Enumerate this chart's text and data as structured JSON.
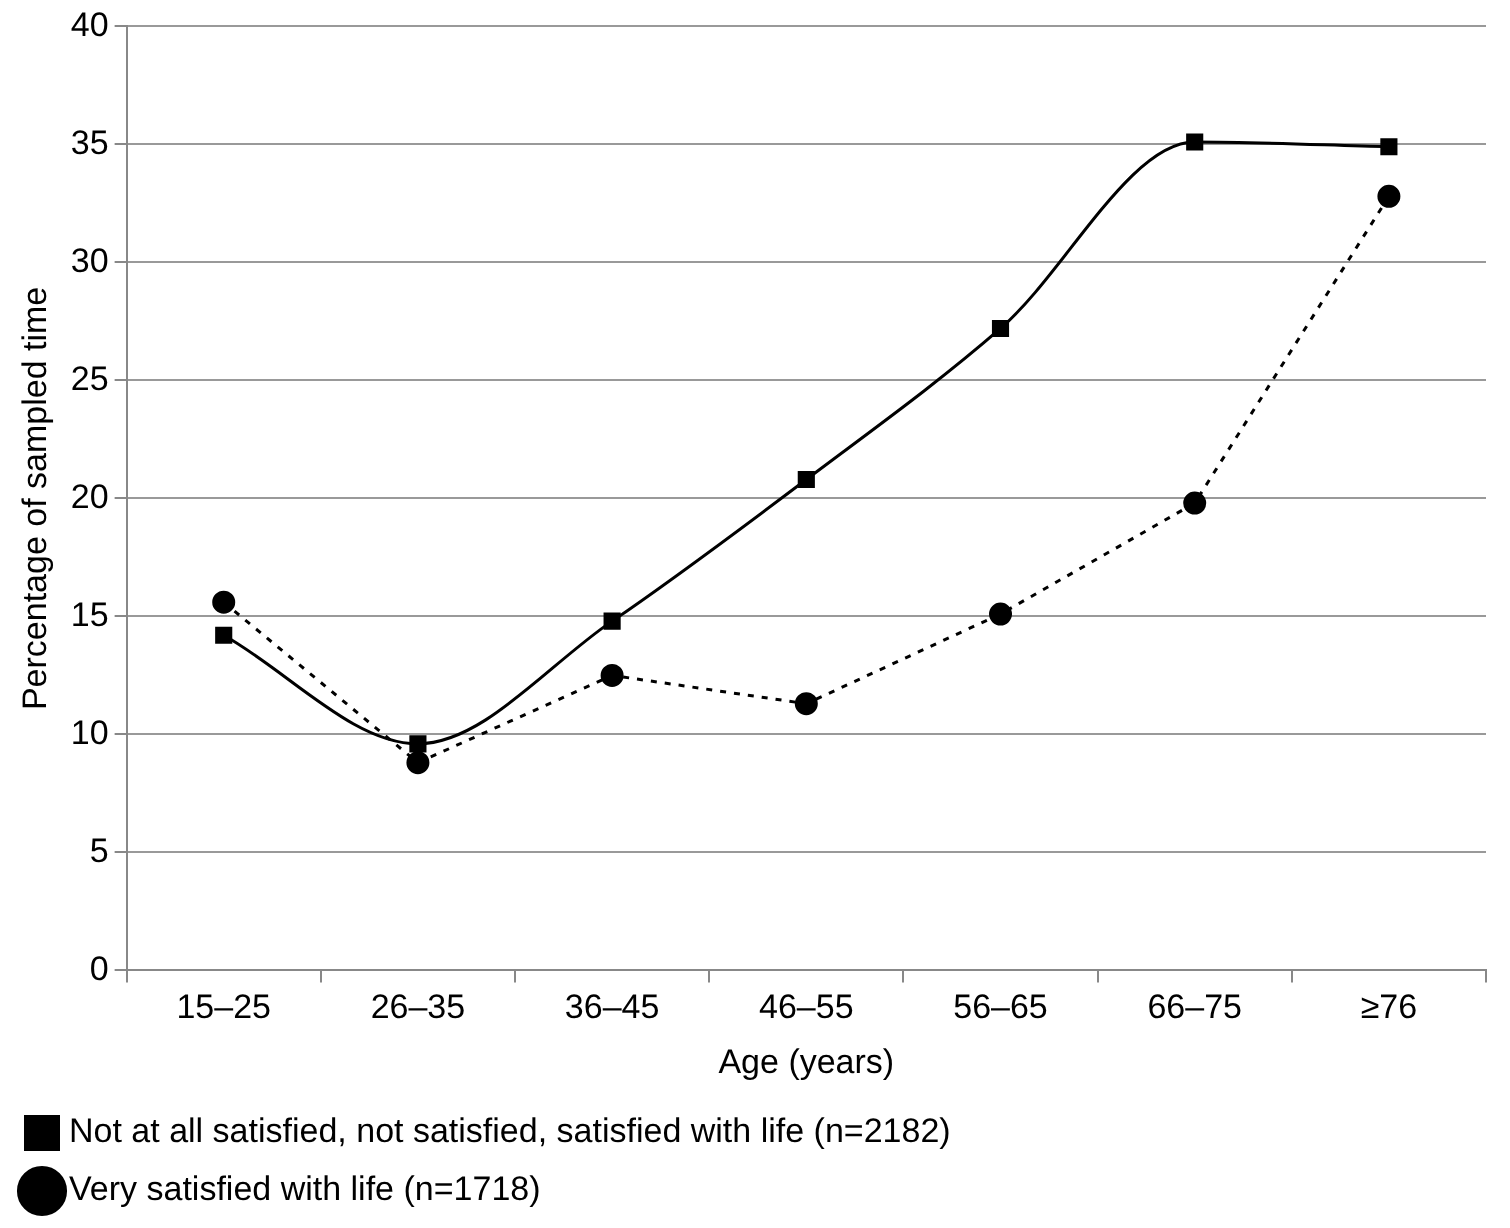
{
  "chart_data": {
    "type": "line",
    "xlabel": "Age (years)",
    "ylabel": "Percentage of sampled time",
    "categories": [
      "15–25",
      "26–35",
      "36–45",
      "46–55",
      "56–65",
      "66–75",
      "≥76"
    ],
    "series": [
      {
        "name": "Not at all satisfied, not satisfied, satisfied with life (n=2182)",
        "color": "#000000",
        "marker": "square",
        "line_style": "solid",
        "values": [
          14.2,
          9.6,
          14.8,
          20.8,
          27.2,
          35.1,
          34.9
        ]
      },
      {
        "name": "Very satisfied with life (n=1718)",
        "color": "#000000",
        "marker": "circle",
        "line_style": "dotted",
        "values": [
          15.6,
          8.8,
          12.5,
          11.3,
          15.1,
          19.8,
          32.8
        ]
      }
    ],
    "ylim": [
      0,
      40
    ],
    "yticks": [
      0,
      5,
      10,
      15,
      20,
      25,
      30,
      35,
      40
    ],
    "grid": "y",
    "legend": "bottom"
  }
}
